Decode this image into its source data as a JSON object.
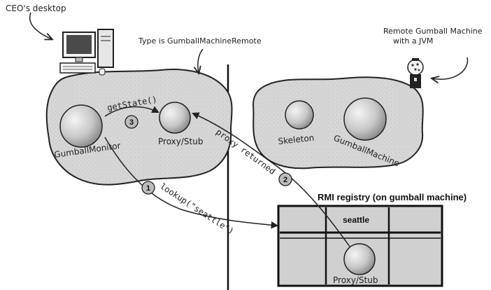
{
  "annotations": {
    "ceo_desktop": "CEO's desktop",
    "type_note": "Type is GumballMachineRemote",
    "remote_note_line1": "Remote Gumball Machine",
    "remote_note_line2": "with a JVM"
  },
  "client_heap": {
    "gumball_monitor": "GumballMonitor",
    "proxy": "Proxy/Stub",
    "call": "getState()"
  },
  "server_heap": {
    "skeleton": "Skeleton",
    "gumball_machine": "GumballMachine"
  },
  "registry": {
    "title": "RMI registry (on gumball machine)",
    "entry": "seattle",
    "proxy": "Proxy/Stub"
  },
  "steps": {
    "step1_number": "1",
    "step1_label": "lookup(\"seattle\")",
    "step2_number": "2",
    "step2_label": "proxy returned",
    "step3_number": "3"
  }
}
